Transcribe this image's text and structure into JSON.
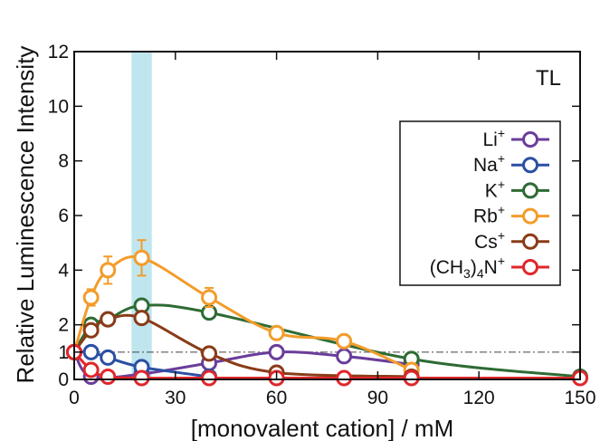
{
  "chart_data": {
    "type": "line",
    "xlabel": "[monovalent cation] / mM",
    "ylabel": "Relative Luminescence Intensity",
    "annotation": "TL",
    "xlim": [
      0,
      150
    ],
    "ylim": [
      0,
      12
    ],
    "xticks": [
      0,
      30,
      60,
      90,
      120,
      150
    ],
    "yticks": [
      0,
      1,
      2,
      4,
      6,
      8,
      10,
      12
    ],
    "reference_line_y": 1,
    "highlight_band_x": [
      17,
      23
    ],
    "grid": false,
    "legend_position": "right",
    "series": [
      {
        "name": "Li+",
        "label_main": "Li",
        "label_sup": "+",
        "color": "#6a3d9a",
        "x": [
          0,
          5,
          20,
          40,
          60,
          80,
          100
        ],
        "y": [
          1.0,
          0.1,
          0.2,
          0.6,
          1.0,
          0.85,
          0.55
        ],
        "err": [
          0,
          0,
          0,
          0,
          0,
          0,
          0
        ]
      },
      {
        "name": "Na+",
        "label_main": "Na",
        "label_sup": "+",
        "color": "#2b4fa3",
        "x": [
          0,
          5,
          10,
          20,
          40
        ],
        "y": [
          1.0,
          1.0,
          0.8,
          0.45,
          0.1
        ],
        "err": [
          0,
          0,
          0,
          0,
          0
        ]
      },
      {
        "name": "K+",
        "label_main": "K",
        "label_sup": "+",
        "color": "#2e6b33",
        "x": [
          0,
          5,
          10,
          20,
          40,
          100,
          150
        ],
        "y": [
          1.0,
          2.0,
          2.2,
          2.7,
          2.45,
          0.75,
          0.1
        ],
        "err": [
          0,
          0,
          0,
          0.1,
          0.1,
          0,
          0
        ]
      },
      {
        "name": "Rb+",
        "label_main": "Rb",
        "label_sup": "+",
        "color": "#f39c2a",
        "x": [
          0,
          5,
          10,
          20,
          40,
          60,
          80,
          100
        ],
        "y": [
          1.0,
          3.0,
          4.0,
          4.45,
          3.0,
          1.7,
          1.4,
          0.35
        ],
        "err": [
          0,
          0.3,
          0.5,
          0.65,
          0.35,
          0.1,
          0,
          0
        ]
      },
      {
        "name": "Cs+",
        "label_main": "Cs",
        "label_sup": "+",
        "color": "#8a3b17",
        "x": [
          0,
          5,
          10,
          20,
          40,
          60,
          100
        ],
        "y": [
          1.0,
          1.8,
          2.2,
          2.25,
          0.95,
          0.25,
          0.1
        ],
        "err": [
          0,
          0,
          0,
          0.1,
          0,
          0,
          0
        ]
      },
      {
        "name": "(CH3)4N+",
        "label_main": "(CH",
        "label_sub": "3",
        "label_mid": ")",
        "label_sub2": "4",
        "label_end": "N",
        "label_sup": "+",
        "color": "#e0262b",
        "x": [
          0,
          5,
          10,
          20,
          40,
          60,
          80,
          100,
          150
        ],
        "y": [
          1.0,
          0.35,
          0.1,
          0.05,
          0.05,
          0.05,
          0.05,
          0.05,
          0.05
        ],
        "err": [
          0,
          0,
          0,
          0,
          0,
          0,
          0,
          0,
          0
        ]
      }
    ]
  }
}
